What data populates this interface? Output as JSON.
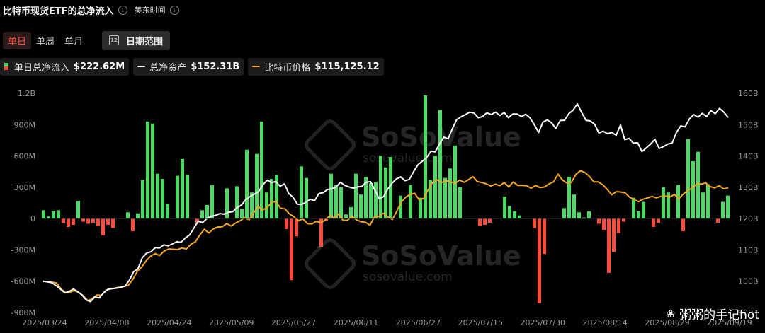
{
  "header": {
    "title": "比特币现货ETF的总净流入",
    "timezone": "美东时间"
  },
  "period_tabs": [
    {
      "label": "单日",
      "active": true
    },
    {
      "label": "单周",
      "active": false
    },
    {
      "label": "单月",
      "active": false
    }
  ],
  "date_range_label": "日期范围",
  "calendar_icon_text": "12",
  "legend": [
    {
      "label": "单日总净流入",
      "value": "$222.62M"
    },
    {
      "label": "总净资产",
      "value": "$152.31B"
    },
    {
      "label": "比特币价格",
      "value": "$115,125.12"
    }
  ],
  "colors": {
    "inflow": "#4cd964",
    "outflow": "#ff4d3d",
    "assets_line": "#ffffff",
    "price_line": "#f5a623",
    "active_tab": "#ff4d3d"
  },
  "watermark": {
    "brand": "SoSoValue",
    "url": "sosovalue.com"
  },
  "credit": {
    "text": "粥粥的手记hot"
  },
  "chart_data": {
    "type": "bar",
    "x_ticks": [
      "2025/03/24",
      "2025/04/08",
      "2025/04/24",
      "2025/05/09",
      "2025/05/27",
      "2025/06/11",
      "2025/06/27",
      "2025/07/15",
      "2025/07/30",
      "2025/08/14",
      "2025/08/29",
      "2025/09/19"
    ],
    "y_left": {
      "ticks": [
        "1.2B",
        "900M",
        "600M",
        "300M",
        "0",
        "-300M",
        "-600M",
        "-900M"
      ],
      "range": [
        -900,
        1200
      ],
      "unit": "M USD"
    },
    "y_right": {
      "ticks": [
        "160B",
        "150B",
        "140B",
        "130B",
        "120B",
        "110B",
        "100B",
        "90B"
      ],
      "range": [
        90,
        160
      ],
      "unit": "B USD"
    },
    "grid": false,
    "series": [
      {
        "name": "单日总净流入",
        "type": "bar",
        "values": [
          80,
          20,
          70,
          80,
          -40,
          -80,
          -60,
          170,
          -30,
          -50,
          -40,
          -70,
          -160,
          -60,
          -90,
          0,
          0,
          60,
          -120,
          50,
          370,
          930,
          910,
          430,
          380,
          140,
          0,
          410,
          570,
          420,
          0,
          -40,
          80,
          130,
          320,
          0,
          0,
          290,
          0,
          310,
          90,
          660,
          250,
          620,
          930,
          250,
          380,
          420,
          0,
          -100,
          -590,
          -170,
          500,
          390,
          0,
          0,
          -270,
          -20,
          430,
          320,
          300,
          40,
          110,
          430,
          230,
          400,
          340,
          350,
          600,
          490,
          590,
          0,
          220,
          0,
          320,
          0,
          200,
          1180,
          370,
          600,
          1040,
          390,
          480,
          700,
          300,
          0,
          0,
          0,
          -70,
          -60,
          -40,
          0,
          0,
          210,
          120,
          70,
          30,
          0,
          0,
          -90,
          -810,
          -340,
          0,
          0,
          0,
          100,
          400,
          230,
          60,
          10,
          70,
          0,
          -50,
          -110,
          -520,
          -320,
          -140,
          -30,
          0,
          200,
          70,
          160,
          0,
          -80,
          -40,
          300,
          250,
          0,
          320,
          -120,
          760,
          550,
          640,
          250,
          330,
          0,
          -40,
          160,
          220
        ]
      },
      {
        "name": "总净资产",
        "type": "line",
        "axis": "right",
        "values": [
          100,
          99.8,
          99.5,
          98.6,
          97.5,
          96.3,
          96.7,
          97.5,
          96.7,
          95.6,
          94,
          93.5,
          95,
          94.7,
          96.2,
          97.4,
          97.6,
          97.8,
          98,
          98.5,
          100.3,
          103,
          104,
          107.5,
          109,
          109.4,
          110.7,
          110.6,
          111.6,
          111.3,
          111.9,
          112.6,
          112.4,
          113.8,
          114.8,
          117,
          119.2,
          118.7,
          120,
          120.7,
          121,
          121.6,
          121.4,
          122,
          122.2,
          123.5,
          124.3,
          126,
          127,
          127.8,
          128.6,
          130.8,
          132.3,
          131.5,
          131.8,
          130.3,
          131.1,
          128,
          126.8,
          124.6,
          124.5,
          125.2,
          126.2,
          125.7,
          128,
          128.3,
          129.3,
          129.5,
          130.1,
          131.6,
          130.6,
          130.1,
          129.7,
          130.1,
          130.3,
          131.6,
          131.8,
          129.1,
          126.3,
          127,
          129.5,
          131.3,
          132.7,
          133.3,
          132.1,
          132.5,
          135,
          137.2,
          138.3,
          139.5,
          141.5,
          141.3,
          143.8,
          146,
          145.5,
          148.8,
          151.6,
          152.5,
          153.2,
          154,
          153.7,
          152.2,
          152.6,
          153.8,
          153.2,
          154,
          152.9,
          153.9,
          152.2,
          153.4,
          153.4,
          152.6,
          153.3,
          152.2,
          150,
          147.5,
          150.8,
          151.5,
          150.6,
          148.8,
          151.3,
          151.4,
          153.5,
          154.6,
          156.6,
          153.9,
          151.4,
          151.2,
          150.1,
          147.3,
          147.9,
          147.1,
          147.5,
          146.6,
          149.9,
          145.2,
          145.6,
          144.1,
          144.2,
          141.4,
          142.6,
          143.8,
          145.3,
          142.4,
          143,
          143.8,
          144.1,
          147.5,
          149.6,
          149.3,
          151.8,
          153.2,
          152.4,
          153.6,
          152.6,
          154.5,
          153.5,
          155.2,
          154,
          152.3
        ]
      },
      {
        "name": "比特币价格",
        "type": "line",
        "axis": "right",
        "values": [
          100,
          99.8,
          99.7,
          99.4,
          97.5,
          96.3,
          96.5,
          97.1,
          96.3,
          95.3,
          93.8,
          94.5,
          95.6,
          95.5,
          97.1,
          97.6,
          97.8,
          98.1,
          98.3,
          98.7,
          100.5,
          103.1,
          104.5,
          106.5,
          108,
          108.8,
          108.2,
          109.6,
          110.3,
          110.2,
          110.1,
          110.6,
          110.3,
          111.8,
          112.6,
          114.8,
          116.6,
          115.4,
          116.7,
          117.3,
          117.4,
          118.4,
          117.6,
          118.6,
          119.3,
          120.3,
          119.6,
          121.8,
          123.8,
          122.8,
          123.4,
          125.2,
          125.5,
          123.3,
          123.1,
          121.5,
          120.6,
          119.3,
          119.9,
          118.4,
          118.3,
          119.1,
          118.7,
          119.5,
          121,
          120.2,
          121.5,
          119.4,
          119.5,
          120.7,
          119.6,
          119,
          118.8,
          117.9,
          120.6,
          120.7,
          121.7,
          120.5,
          119.7,
          122.4,
          125.3,
          126.8,
          127.8,
          128.1,
          125.9,
          126.5,
          129.2,
          131.6,
          132.4,
          131.5,
          132.1,
          131.7,
          131.2,
          132.3,
          131.6,
          132.4,
          133.4,
          131.8,
          131.5,
          131.1,
          130.4,
          131,
          130.5,
          131.5,
          130.1,
          131.7,
          130.6,
          130.6,
          130.5,
          129.7,
          130.6,
          129.9,
          130.1,
          131.1,
          131.7,
          134.2,
          132.3,
          131.3,
          131.6,
          134.1,
          135.3,
          134.7,
          133.5,
          131.7,
          131.7,
          130.8,
          129.3,
          127.6,
          128.6,
          128.5,
          128.2,
          126.8,
          126.1,
          125.4,
          126.2,
          126.6,
          127.1,
          126.6,
          127.1,
          127.2,
          126.9,
          127.7,
          126.3,
          127.9,
          128.9,
          129.8,
          131.1,
          131,
          131.4,
          130.2,
          129.8,
          130.5,
          129.5,
          129.8
        ]
      }
    ]
  }
}
